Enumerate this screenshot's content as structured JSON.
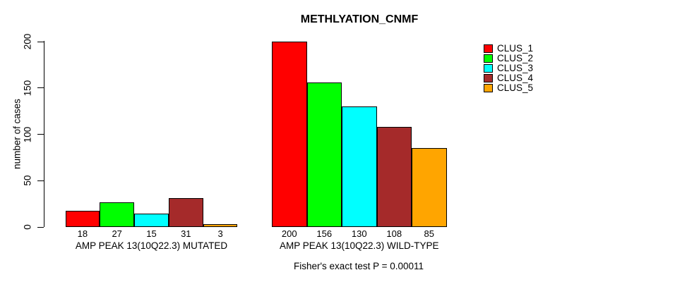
{
  "chart_data": {
    "type": "bar",
    "title": "METHLYATION_CNMF",
    "ylabel": "number of cases",
    "ylim": [
      0,
      200
    ],
    "yticks": [
      0,
      50,
      100,
      150,
      200
    ],
    "grid": false,
    "legend_position": "right",
    "categories": [
      "CLUS_1",
      "CLUS_2",
      "CLUS_3",
      "CLUS_4",
      "CLUS_5"
    ],
    "colors": [
      "#FF0000",
      "#00FF00",
      "#00FFFF",
      "#A52A2A",
      "#FFA500"
    ],
    "groups": [
      {
        "label": "AMP PEAK 13(10Q22.3) MUTATED",
        "values": [
          18,
          27,
          15,
          31,
          3
        ]
      },
      {
        "label": "AMP PEAK 13(10Q22.3) WILD-TYPE",
        "values": [
          200,
          156,
          130,
          108,
          85
        ]
      }
    ],
    "bar_value_labels_shown": true,
    "annotation": "Fisher's exact test P = 0.00011"
  }
}
